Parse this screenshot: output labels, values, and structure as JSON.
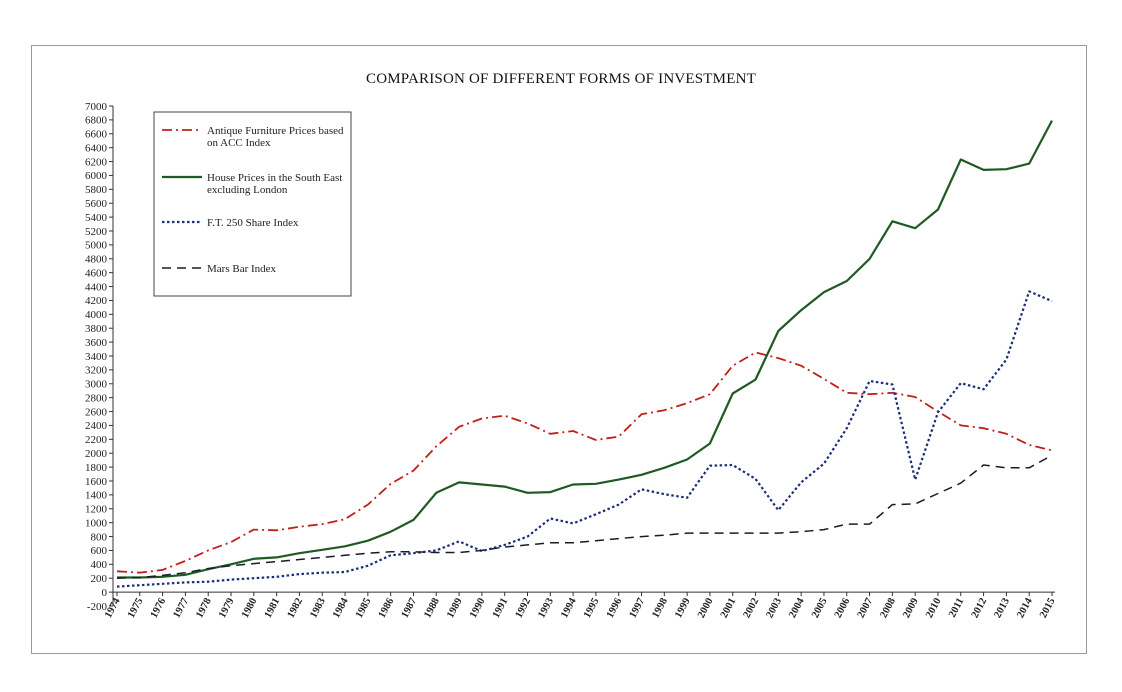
{
  "chart_data": {
    "type": "line",
    "title": "COMPARISON OF DIFFERENT FORMS OF  INVESTMENT",
    "xlabel": "",
    "ylabel": "",
    "ylim": [
      -200,
      7000
    ],
    "yticks": [
      -200,
      0,
      200,
      400,
      600,
      800,
      1000,
      1200,
      1400,
      1600,
      1800,
      2000,
      2200,
      2400,
      2600,
      2800,
      3000,
      3200,
      3400,
      3600,
      3800,
      4000,
      4200,
      4400,
      4600,
      4800,
      5000,
      5200,
      5400,
      5600,
      5800,
      6000,
      6200,
      6400,
      6600,
      6800,
      7000
    ],
    "ytick_labels": [
      "-200",
      "0",
      "200",
      "400",
      "600",
      "800",
      "1000",
      "1200",
      "1400",
      "1600",
      "1800",
      "2000",
      "2200",
      "2400",
      "2600",
      "2800",
      "3000",
      "3200",
      "3400",
      "3600",
      "3800",
      "4000",
      "4200",
      "4400",
      "4600",
      "4800",
      "5000",
      "5200",
      "5400",
      "5600",
      "5800",
      "6000",
      "6200",
      "6400",
      "6600",
      "6800",
      "7000"
    ],
    "categories": [
      "1974",
      "1975",
      "1976",
      "1977",
      "1978",
      "1979",
      "1980",
      "1981",
      "1982",
      "1983",
      "1984",
      "1985",
      "1986",
      "1987",
      "1988",
      "1989",
      "1990",
      "1991",
      "1992",
      "1993",
      "1994",
      "1995",
      "1996",
      "1997",
      "1998",
      "1999",
      "2000",
      "2001",
      "2002",
      "2003",
      "2004",
      "2005",
      "2006",
      "2007",
      "2008",
      "2009",
      "2010",
      "2011",
      "2012",
      "2013",
      "2014",
      "2015"
    ],
    "legend_position": "top-left",
    "series": [
      {
        "name": "Antique Furniture Prices based on ACC Index",
        "legend_lines": [
          "Antique Furniture Prices based",
          "on ACC Index"
        ],
        "color": "#c0201a",
        "style": "dash-dot",
        "values": [
          300,
          280,
          320,
          450,
          600,
          720,
          900,
          890,
          940,
          980,
          1050,
          1260,
          1560,
          1750,
          2100,
          2380,
          2500,
          2540,
          2430,
          2280,
          2320,
          2190,
          2240,
          2560,
          2620,
          2720,
          2850,
          3260,
          3450,
          3370,
          3260,
          3070,
          2870,
          2850,
          2870,
          2810,
          2600,
          2400,
          2360,
          2280,
          2120,
          2040
        ]
      },
      {
        "name": "House Prices in the South East excluding London",
        "legend_lines": [
          "House Prices in the South East",
          "excluding London"
        ],
        "color": "#1f5a25",
        "style": "solid",
        "values": [
          210,
          210,
          220,
          250,
          330,
          400,
          480,
          500,
          560,
          610,
          660,
          740,
          870,
          1040,
          1430,
          1580,
          1550,
          1520,
          1430,
          1440,
          1550,
          1560,
          1620,
          1690,
          1790,
          1910,
          2140,
          2860,
          3060,
          3760,
          4060,
          4320,
          4480,
          4800,
          5340,
          5240,
          5510,
          6230,
          6080,
          6090,
          6170,
          6790
        ]
      },
      {
        "name": "F.T. 250 Share Index",
        "legend_lines": [
          "F.T. 250 Share Index"
        ],
        "color": "#1c2c78",
        "style": "dotted",
        "values": [
          80,
          100,
          120,
          140,
          150,
          180,
          200,
          220,
          260,
          280,
          290,
          380,
          530,
          560,
          600,
          730,
          590,
          680,
          800,
          1060,
          990,
          1120,
          1260,
          1480,
          1410,
          1360,
          1820,
          1830,
          1630,
          1180,
          1580,
          1850,
          2360,
          3040,
          2990,
          1620,
          2590,
          3010,
          2920,
          3350,
          4330,
          4190
        ]
      },
      {
        "name": "Mars Bar Index",
        "legend_lines": [
          "Mars Bar Index"
        ],
        "color": "#1a1a2e",
        "style": "long-dash",
        "values": [
          200,
          210,
          240,
          280,
          340,
          380,
          410,
          440,
          470,
          500,
          530,
          560,
          580,
          580,
          570,
          570,
          600,
          650,
          680,
          710,
          710,
          740,
          770,
          800,
          820,
          850,
          850,
          850,
          850,
          850,
          870,
          900,
          980,
          980,
          1260,
          1270,
          1420,
          1570,
          1830,
          1790,
          1790,
          1970
        ]
      }
    ]
  }
}
